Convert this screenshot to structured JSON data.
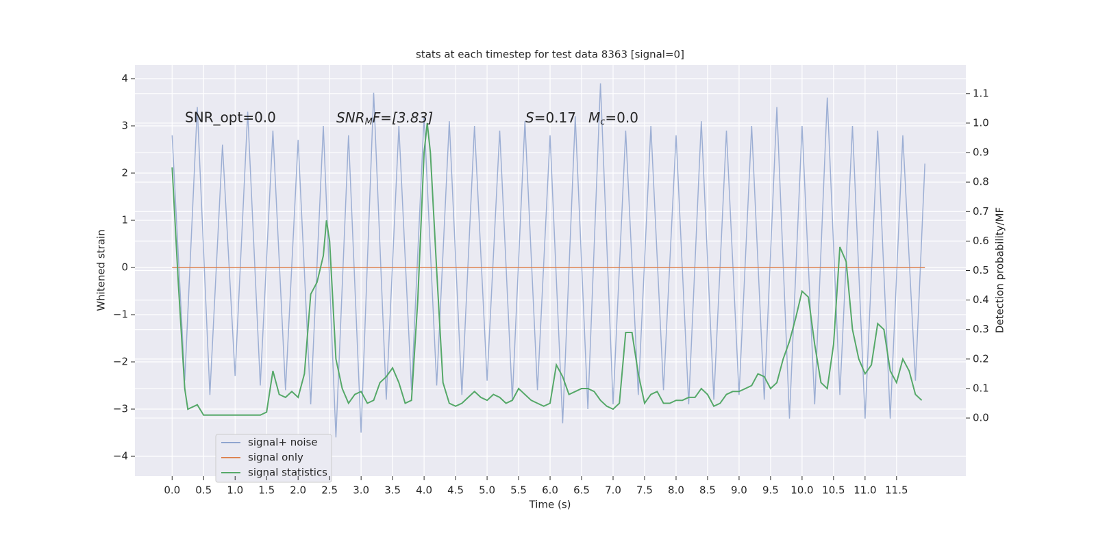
{
  "chart_data": {
    "type": "line",
    "title": "stats at each timestep for test data 8363 [signal=0]",
    "xlabel": "Time (s)",
    "ylabel": "Whitened strain",
    "y2label": "Detection probability/MF",
    "annotations": [
      [
        "SNR_opt=0.0"
      ],
      [
        "SNR",
        "M",
        "F=[3.83]"
      ],
      [
        "S",
        "=0.17",
        "M",
        "c",
        "=0.0"
      ]
    ],
    "xlim": [
      -0.59,
      12.6
    ],
    "ylim": [
      -4.42,
      4.29
    ],
    "y2lim": [
      -0.197,
      1.197
    ],
    "xticks": [
      {
        "value": 0,
        "label": "0.0"
      },
      0.5,
      {
        "value": 1,
        "label": "1.0"
      },
      1.5,
      {
        "value": 2,
        "label": "2.0"
      },
      2.5,
      {
        "value": 3,
        "label": "3.0"
      },
      3.5,
      {
        "value": 4,
        "label": "4.0"
      },
      4.5,
      {
        "value": 5,
        "label": "5.0"
      },
      5.5,
      {
        "value": 6,
        "label": "6.0"
      },
      6.5,
      {
        "value": 7,
        "label": "7.0"
      },
      7.5,
      {
        "value": 8,
        "label": "8.0"
      },
      8.5,
      {
        "value": 9,
        "label": "9.0"
      },
      9.5,
      {
        "value": 10,
        "label": "10.0"
      },
      10.5,
      {
        "value": 11,
        "label": "11.0"
      },
      11.5
    ],
    "yticks": [
      {
        "value": -4,
        "label": "−4"
      },
      {
        "value": -3,
        "label": "−3"
      },
      {
        "value": -2,
        "label": "−2"
      },
      {
        "value": -1,
        "label": "−1"
      },
      0,
      1,
      2,
      3,
      4
    ],
    "y2ticks": [
      {
        "value": 0,
        "label": "0.0"
      },
      0.1,
      0.2,
      0.3,
      0.4,
      0.5,
      0.6,
      0.7,
      0.8,
      0.9,
      {
        "value": 1,
        "label": "1.0"
      },
      1.1
    ],
    "grid": true,
    "legend": "lower left",
    "series": [
      {
        "name": "signal+ noise",
        "color": "#8fa5cf",
        "x": [
          0,
          0.2,
          0.4,
          0.6,
          0.8,
          1,
          1.2,
          1.4,
          1.6,
          1.8,
          2,
          2.2,
          2.4,
          2.6,
          2.8,
          3,
          3.2,
          3.4,
          3.6,
          3.8,
          4,
          4.2,
          4.4,
          4.6,
          4.8,
          5,
          5.2,
          5.4,
          5.6,
          5.8,
          6,
          6.2,
          6.4,
          6.6,
          6.8,
          7,
          7.2,
          7.4,
          7.6,
          7.8,
          8,
          8.2,
          8.4,
          8.6,
          8.8,
          9,
          9.2,
          9.4,
          9.6,
          9.8,
          10,
          10.2,
          10.4,
          10.6,
          10.8,
          11,
          11.2,
          11.4,
          11.6,
          11.8,
          11.95
        ],
        "values": [
          2.8,
          -2.4,
          3.4,
          -2.7,
          2.6,
          -2.3,
          3.3,
          -2.5,
          2.9,
          -2.6,
          2.7,
          -2.9,
          3.0,
          -3.6,
          2.8,
          -3.5,
          3.7,
          -2.8,
          3.0,
          -2.6,
          3.2,
          -2.5,
          3.1,
          -2.7,
          3.0,
          -2.4,
          2.9,
          -2.8,
          3.1,
          -2.6,
          2.8,
          -3.3,
          3.2,
          -3.0,
          3.9,
          -2.9,
          2.9,
          -2.7,
          3.0,
          -2.6,
          2.8,
          -2.9,
          3.1,
          -2.8,
          2.9,
          -2.7,
          3.0,
          -2.8,
          3.4,
          -3.2,
          3.0,
          -2.9,
          3.6,
          -2.7,
          3.0,
          -3.2,
          2.9,
          -3.2,
          2.8,
          -2.4,
          2.2
        ]
      },
      {
        "name": "signal only",
        "color": "#dd8452",
        "x": [
          0,
          11.95
        ],
        "values": [
          0,
          0
        ]
      },
      {
        "name": "signal statistics",
        "color": "#55a868",
        "axis": "y2",
        "x": [
          0,
          0.1,
          0.2,
          0.25,
          0.4,
          0.5,
          0.7,
          1.4,
          1.5,
          1.6,
          1.7,
          1.8,
          1.9,
          2.0,
          2.1,
          2.2,
          2.3,
          2.4,
          2.45,
          2.5,
          2.6,
          2.7,
          2.8,
          2.9,
          3.0,
          3.1,
          3.2,
          3.3,
          3.4,
          3.5,
          3.6,
          3.7,
          3.8,
          3.9,
          4.0,
          4.05,
          4.1,
          4.2,
          4.3,
          4.4,
          4.5,
          4.6,
          4.7,
          4.8,
          4.9,
          5.0,
          5.1,
          5.2,
          5.3,
          5.4,
          5.5,
          5.6,
          5.7,
          5.8,
          5.9,
          6.0,
          6.1,
          6.2,
          6.3,
          6.4,
          6.5,
          6.6,
          6.7,
          6.8,
          6.9,
          7.0,
          7.1,
          7.2,
          7.3,
          7.4,
          7.5,
          7.6,
          7.7,
          7.8,
          7.9,
          8.0,
          8.1,
          8.2,
          8.3,
          8.4,
          8.5,
          8.6,
          8.7,
          8.8,
          8.9,
          9.0,
          9.1,
          9.2,
          9.3,
          9.4,
          9.5,
          9.6,
          9.7,
          9.8,
          9.9,
          10.0,
          10.1,
          10.2,
          10.3,
          10.4,
          10.5,
          10.6,
          10.7,
          10.8,
          10.9,
          11.0,
          11.1,
          11.2,
          11.3,
          11.4,
          11.5,
          11.6,
          11.7,
          11.8,
          11.9
        ],
        "values": [
          0.85,
          0.45,
          0.1,
          0.03,
          0.045,
          0.01,
          0.01,
          0.01,
          0.02,
          0.16,
          0.08,
          0.07,
          0.09,
          0.07,
          0.15,
          0.42,
          0.46,
          0.55,
          0.67,
          0.6,
          0.2,
          0.1,
          0.05,
          0.08,
          0.09,
          0.05,
          0.06,
          0.12,
          0.14,
          0.17,
          0.12,
          0.05,
          0.06,
          0.4,
          0.9,
          1.0,
          0.9,
          0.5,
          0.12,
          0.05,
          0.04,
          0.05,
          0.07,
          0.09,
          0.07,
          0.06,
          0.08,
          0.07,
          0.05,
          0.06,
          0.1,
          0.08,
          0.06,
          0.05,
          0.04,
          0.05,
          0.18,
          0.14,
          0.08,
          0.09,
          0.1,
          0.1,
          0.09,
          0.06,
          0.04,
          0.03,
          0.05,
          0.29,
          0.29,
          0.15,
          0.05,
          0.08,
          0.09,
          0.05,
          0.05,
          0.06,
          0.06,
          0.07,
          0.07,
          0.1,
          0.08,
          0.04,
          0.05,
          0.08,
          0.09,
          0.09,
          0.1,
          0.11,
          0.15,
          0.14,
          0.1,
          0.12,
          0.2,
          0.26,
          0.34,
          0.43,
          0.41,
          0.25,
          0.12,
          0.1,
          0.25,
          0.58,
          0.53,
          0.3,
          0.2,
          0.15,
          0.18,
          0.32,
          0.3,
          0.16,
          0.12,
          0.2,
          0.16,
          0.08,
          0.06
        ]
      }
    ]
  }
}
